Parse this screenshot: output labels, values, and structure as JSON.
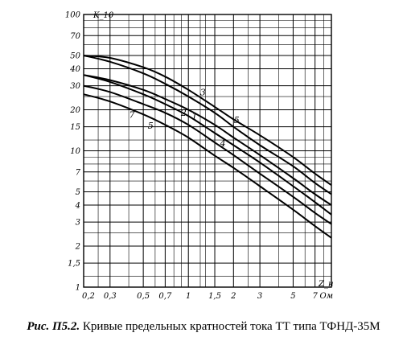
{
  "caption": {
    "figure_number": "Рис. П5.2.",
    "text": " Кривые предельных кратностей тока ТТ типа ТФНД-35М"
  },
  "chart_data": {
    "type": "line",
    "title": "",
    "xlabel": "Z_н",
    "ylabel": "K_10",
    "x_unit": "Ом",
    "x_scale": "log",
    "y_scale": "log",
    "xlim": [
      0.2,
      9
    ],
    "ylim": [
      1,
      100
    ],
    "grid": true,
    "x_ticks": [
      {
        "value": 0.2,
        "label": "0,2"
      },
      {
        "value": 0.3,
        "label": "0,3"
      },
      {
        "value": 0.5,
        "label": "0,5"
      },
      {
        "value": 0.7,
        "label": "0,7"
      },
      {
        "value": 1,
        "label": "1"
      },
      {
        "value": 1.5,
        "label": "1,5"
      },
      {
        "value": 2,
        "label": "2"
      },
      {
        "value": 3,
        "label": "3"
      },
      {
        "value": 5,
        "label": "5"
      },
      {
        "value": 7,
        "label": "7"
      },
      {
        "value": 9,
        "label": "Ом"
      }
    ],
    "x_minor_grid": [
      0.25,
      0.4,
      0.6,
      0.8,
      0.9,
      1.2,
      1.3,
      2.5,
      4,
      6,
      8
    ],
    "y_ticks": [
      {
        "value": 100,
        "label": "100"
      },
      {
        "value": 70,
        "label": "70"
      },
      {
        "value": 50,
        "label": "50"
      },
      {
        "value": 40,
        "label": "40"
      },
      {
        "value": 30,
        "label": "30"
      },
      {
        "value": 20,
        "label": "20"
      },
      {
        "value": 15,
        "label": "15"
      },
      {
        "value": 10,
        "label": "10"
      },
      {
        "value": 7,
        "label": "7"
      },
      {
        "value": 5,
        "label": "5"
      },
      {
        "value": 4,
        "label": "4"
      },
      {
        "value": 3,
        "label": "3"
      },
      {
        "value": 2,
        "label": "2"
      },
      {
        "value": 1.5,
        "label": "1,5"
      },
      {
        "value": 1,
        "label": "1"
      }
    ],
    "y_minor_grid": [
      90,
      80,
      60,
      25,
      12,
      9,
      8,
      6,
      2.5,
      1.2
    ],
    "series": [
      {
        "label": "3",
        "x": [
          0.2,
          0.3,
          0.5,
          0.7,
          1,
          1.5,
          2,
          3,
          5,
          7,
          9
        ],
        "y": [
          50,
          48,
          41,
          35,
          28,
          21,
          17,
          13,
          9,
          6.8,
          5.6
        ]
      },
      {
        "label": "5",
        "x": [
          0.2,
          0.3,
          0.5,
          0.7,
          1,
          1.5,
          2,
          3,
          5,
          7,
          9
        ],
        "y": [
          50,
          45,
          37,
          31,
          25,
          19,
          15,
          11,
          7.7,
          5.8,
          4.8
        ]
      },
      {
        "label": "1",
        "x": [
          0.2,
          0.3,
          0.5,
          0.7,
          1,
          1.5,
          2,
          3,
          5,
          7,
          9
        ],
        "y": [
          36,
          33,
          28,
          24,
          20,
          15.5,
          12.5,
          9.3,
          6.3,
          4.8,
          4
        ]
      },
      {
        "label": "2",
        "x": [
          0.2,
          0.3,
          0.5,
          0.7,
          1,
          1.5,
          2,
          3,
          5,
          7,
          9
        ],
        "y": [
          36,
          32,
          26,
          22,
          18,
          13.5,
          11,
          8.2,
          5.5,
          4.2,
          3.4
        ]
      },
      {
        "label": "4",
        "x": [
          0.2,
          0.3,
          0.5,
          0.7,
          1,
          1.5,
          2,
          3,
          5,
          7,
          9
        ],
        "y": [
          30,
          27,
          22,
          19,
          15.5,
          11.5,
          9.3,
          6.8,
          4.6,
          3.5,
          2.9
        ]
      },
      {
        "label": "7",
        "x": [
          0.2,
          0.3,
          0.5,
          0.7,
          1,
          1.5,
          2,
          3,
          5,
          7,
          9
        ],
        "y": [
          26,
          23,
          18.5,
          15.5,
          12.5,
          9.2,
          7.5,
          5.5,
          3.7,
          2.8,
          2.3
        ]
      }
    ],
    "annotations": [
      {
        "text": "3",
        "series": "3",
        "x": 1.25,
        "y": 25.5
      },
      {
        "text": "5",
        "series": "5",
        "x": 2.1,
        "y": 16
      },
      {
        "text": "1",
        "series": "1",
        "x": 1.1,
        "y": 17
      },
      {
        "text": "4",
        "series": "2",
        "x": 1.7,
        "y": 10.8
      },
      {
        "text": "2",
        "series": "2",
        "x": 0.93,
        "y": 18
      },
      {
        "text": "5",
        "series": "4",
        "x": 0.56,
        "y": 14.5
      },
      {
        "text": "7",
        "series": "7",
        "x": 0.42,
        "y": 17.5
      }
    ]
  }
}
